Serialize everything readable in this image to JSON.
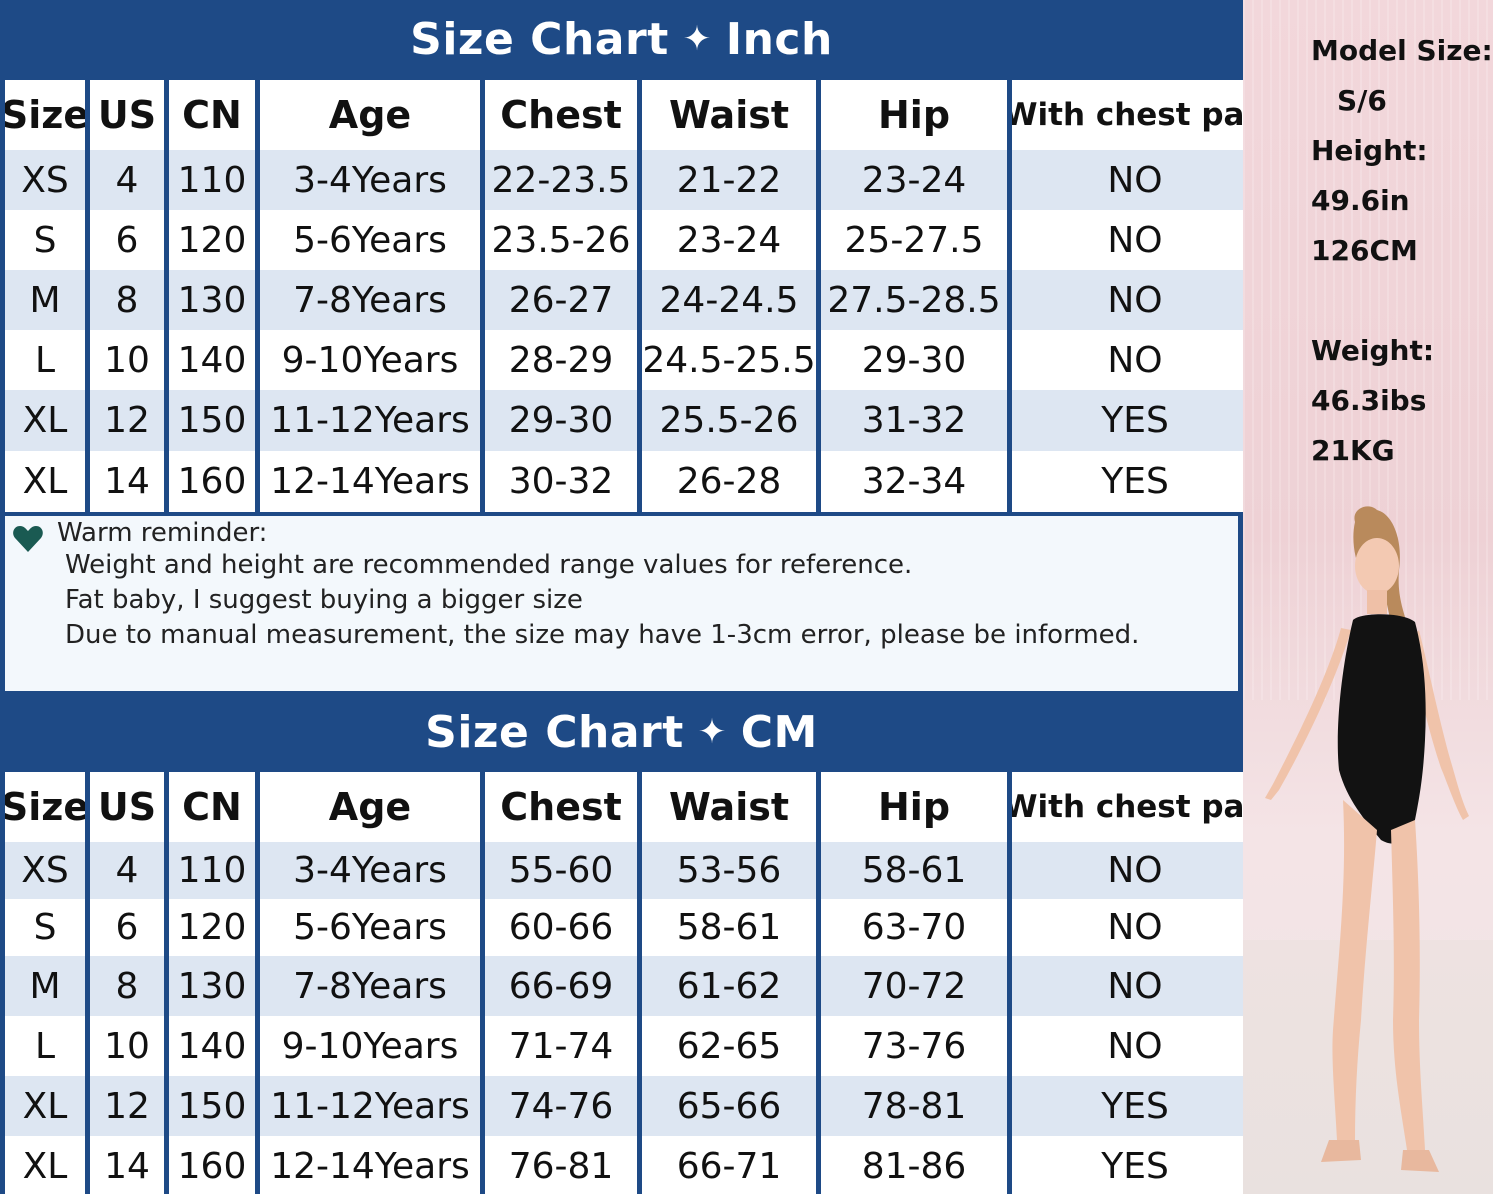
{
  "colors": {
    "header_blue": "#1e4a86",
    "row_shade": "#dde6f2",
    "row_plain": "#ffffff",
    "heart": "#1a5a52",
    "side_bg": "#f0d6da"
  },
  "inch_chart": {
    "title_left": "Size Chart",
    "star": "✦",
    "title_right": "Inch",
    "headers": [
      "Size",
      "US",
      "CN",
      "Age",
      "Chest",
      "Waist",
      "Hip",
      "With chest pad"
    ],
    "rows": [
      [
        "XS",
        "4",
        "110",
        "3-4Years",
        "22-23.5",
        "21-22",
        "23-24",
        "NO"
      ],
      [
        "S",
        "6",
        "120",
        "5-6Years",
        "23.5-26",
        "23-24",
        "25-27.5",
        "NO"
      ],
      [
        "M",
        "8",
        "130",
        "7-8Years",
        "26-27",
        "24-24.5",
        "27.5-28.5",
        "NO"
      ],
      [
        "L",
        "10",
        "140",
        "9-10Years",
        "28-29",
        "24.5-25.5",
        "29-30",
        "NO"
      ],
      [
        "XL",
        "12",
        "150",
        "11-12Years",
        "29-30",
        "25.5-26",
        "31-32",
        "YES"
      ],
      [
        "XL",
        "14",
        "160",
        "12-14Years",
        "30-32",
        "26-28",
        "32-34",
        "YES"
      ]
    ]
  },
  "reminder": {
    "icon": "heart-icon",
    "title": "Warm reminder:",
    "lines": [
      "Weight and height are recommended range values for reference.",
      "Fat baby, I suggest buying a bigger size",
      "Due to manual measurement, the size may have 1-3cm error, please be informed."
    ]
  },
  "cm_chart": {
    "title_left": "Size Chart",
    "star": "✦",
    "title_right": "CM",
    "headers": [
      "Size",
      "US",
      "CN",
      "Age",
      "Chest",
      "Waist",
      "Hip",
      "With chest pad"
    ],
    "rows": [
      [
        "XS",
        "4",
        "110",
        "3-4Years",
        "55-60",
        "53-56",
        "58-61",
        "NO"
      ],
      [
        "S",
        "6",
        "120",
        "5-6Years",
        "60-66",
        "58-61",
        "63-70",
        "NO"
      ],
      [
        "M",
        "8",
        "130",
        "7-8Years",
        "66-69",
        "61-62",
        "70-72",
        "NO"
      ],
      [
        "L",
        "10",
        "140",
        "9-10Years",
        "71-74",
        "62-65",
        "73-76",
        "NO"
      ],
      [
        "XL",
        "12",
        "150",
        "11-12Years",
        "74-76",
        "65-66",
        "78-81",
        "YES"
      ],
      [
        "XL",
        "14",
        "160",
        "12-14Years",
        "76-81",
        "66-71",
        "81-86",
        "YES"
      ]
    ]
  },
  "model": {
    "size_label": "Model Size:",
    "size_value": "S/6",
    "height_label": "Height:",
    "height_in": "49.6in",
    "height_cm": "126CM",
    "weight_label": "Weight:",
    "weight_lbs": "46.3ibs",
    "weight_kg": "21KG"
  }
}
